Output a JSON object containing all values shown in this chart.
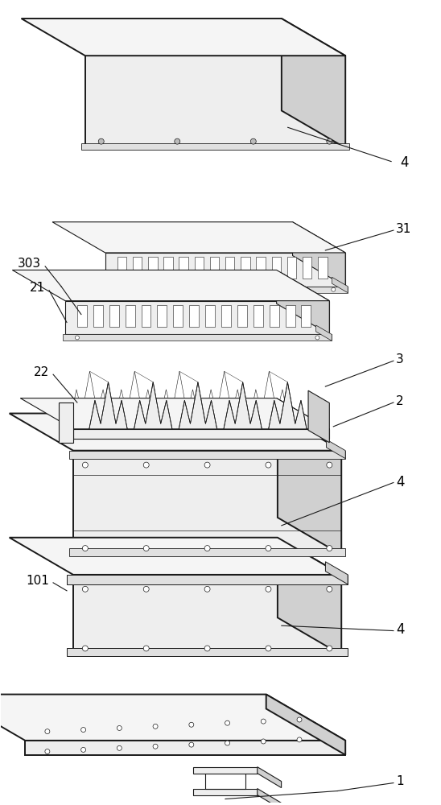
{
  "bg_color": "#ffffff",
  "lc": "#1a1a1a",
  "fc_white": "#ffffff",
  "fc_very_light": "#f5f5f5",
  "fc_light": "#eeeeee",
  "fc_mid": "#e0e0e0",
  "fc_dark": "#d0d0d0",
  "fc_darker": "#bbbbbb",
  "lw": 0.8,
  "lw_thick": 1.4
}
